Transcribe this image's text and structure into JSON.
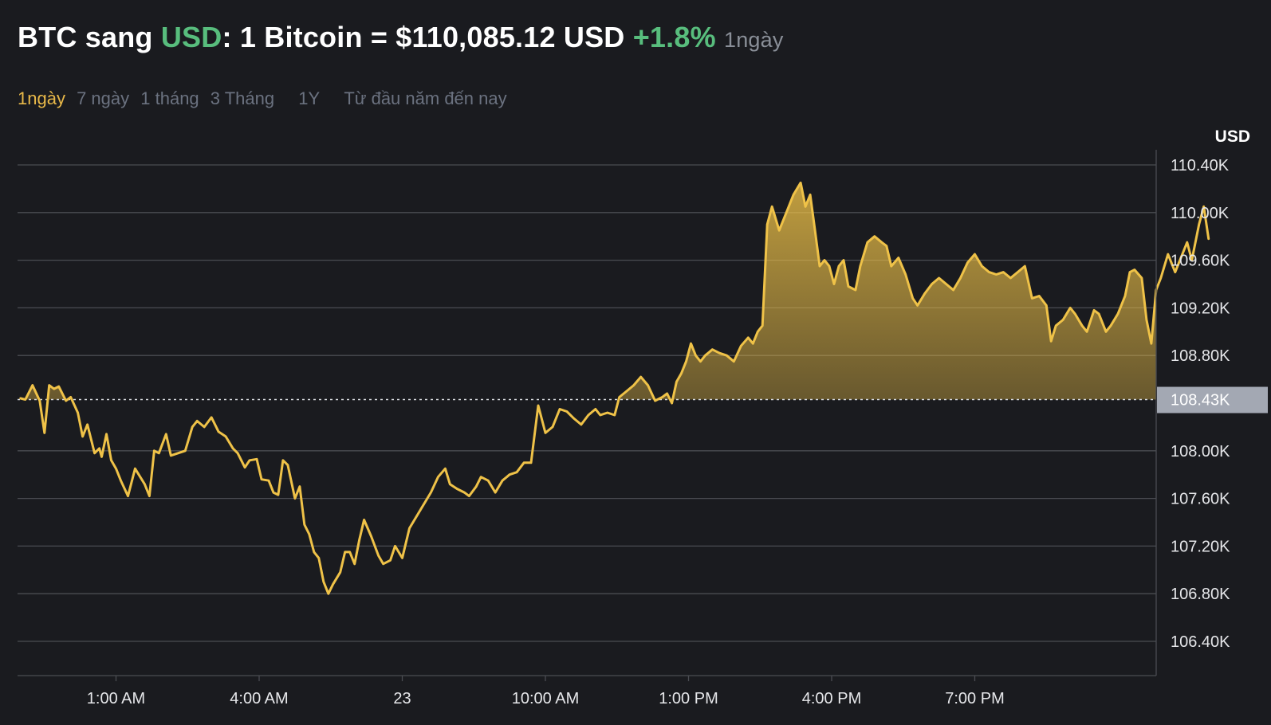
{
  "header": {
    "title_prefix": "BTC sang ",
    "title_accent": "USD",
    "title_main": ": 1 Bitcoin = $110,085.12 USD ",
    "change": "+1.8%",
    "period": "1ngày"
  },
  "tabs": {
    "items": [
      {
        "label": "1ngày",
        "active": true
      },
      {
        "label": "7 ngày",
        "active": false
      },
      {
        "label": "1 tháng",
        "active": false
      },
      {
        "label": "3 Tháng",
        "active": false
      },
      {
        "label": "1Y",
        "active": false
      },
      {
        "label": "Từ đầu năm đến nay",
        "active": false
      }
    ]
  },
  "colors": {
    "background": "#1a1b1f",
    "line": "#efc248",
    "positive": "#58bd7d",
    "muted": "#6b7280",
    "grid": "#4a4c52",
    "reference_badge": "#a3a8b3"
  },
  "chart_data": {
    "type": "area",
    "title": "",
    "xlabel": "",
    "ylabel": "USD",
    "ylim": [
      106.12,
      110.4
    ],
    "y_unit": "K",
    "yticks": [
      {
        "value": 110.4,
        "label": "110.40K"
      },
      {
        "value": 110.0,
        "label": "110.00K"
      },
      {
        "value": 109.6,
        "label": "109.60K"
      },
      {
        "value": 109.2,
        "label": "109.20K"
      },
      {
        "value": 108.8,
        "label": "108.80K"
      },
      {
        "value": 108.0,
        "label": "108.00K"
      },
      {
        "value": 107.6,
        "label": "107.60K"
      },
      {
        "value": 107.2,
        "label": "107.20K"
      },
      {
        "value": 106.8,
        "label": "106.80K"
      },
      {
        "value": 106.4,
        "label": "106.40K"
      }
    ],
    "xlim": [
      -1,
      22.8
    ],
    "xticks": [
      {
        "value": 1,
        "label": "1:00 AM"
      },
      {
        "value": 4,
        "label": "4:00 AM"
      },
      {
        "value": 7,
        "label": "23"
      },
      {
        "value": 10,
        "label": "10:00 AM"
      },
      {
        "value": 13,
        "label": "1:00 PM"
      },
      {
        "value": 16,
        "label": "4:00 PM"
      },
      {
        "value": 19,
        "label": "7:00 PM"
      }
    ],
    "reference": {
      "value": 108.43,
      "label": "108.43K"
    },
    "series": [
      {
        "points": [
          [
            -1.0,
            108.44
          ],
          [
            -0.9,
            108.43
          ],
          [
            -0.75,
            108.55
          ],
          [
            -0.6,
            108.42
          ],
          [
            -0.5,
            108.15
          ],
          [
            -0.4,
            108.55
          ],
          [
            -0.3,
            108.52
          ],
          [
            -0.2,
            108.54
          ],
          [
            -0.05,
            108.42
          ],
          [
            0.05,
            108.45
          ],
          [
            0.2,
            108.32
          ],
          [
            0.3,
            108.12
          ],
          [
            0.4,
            108.22
          ],
          [
            0.55,
            107.98
          ],
          [
            0.65,
            108.02
          ],
          [
            0.7,
            107.95
          ],
          [
            0.8,
            108.14
          ],
          [
            0.9,
            107.92
          ],
          [
            1.0,
            107.85
          ],
          [
            1.1,
            107.75
          ],
          [
            1.25,
            107.62
          ],
          [
            1.4,
            107.85
          ],
          [
            1.6,
            107.72
          ],
          [
            1.7,
            107.62
          ],
          [
            1.8,
            108.0
          ],
          [
            1.9,
            107.98
          ],
          [
            2.05,
            108.14
          ],
          [
            2.15,
            107.96
          ],
          [
            2.3,
            107.98
          ],
          [
            2.45,
            108.0
          ],
          [
            2.6,
            108.2
          ],
          [
            2.7,
            108.25
          ],
          [
            2.85,
            108.2
          ],
          [
            3.0,
            108.28
          ],
          [
            3.15,
            108.16
          ],
          [
            3.3,
            108.12
          ],
          [
            3.45,
            108.02
          ],
          [
            3.55,
            107.98
          ],
          [
            3.7,
            107.86
          ],
          [
            3.8,
            107.92
          ],
          [
            3.95,
            107.93
          ],
          [
            4.05,
            107.76
          ],
          [
            4.2,
            107.75
          ],
          [
            4.3,
            107.65
          ],
          [
            4.4,
            107.63
          ],
          [
            4.5,
            107.92
          ],
          [
            4.6,
            107.88
          ],
          [
            4.75,
            107.6
          ],
          [
            4.85,
            107.7
          ],
          [
            4.95,
            107.38
          ],
          [
            5.05,
            107.3
          ],
          [
            5.15,
            107.15
          ],
          [
            5.25,
            107.1
          ],
          [
            5.35,
            106.9
          ],
          [
            5.45,
            106.8
          ],
          [
            5.55,
            106.88
          ],
          [
            5.7,
            106.98
          ],
          [
            5.8,
            107.15
          ],
          [
            5.9,
            107.15
          ],
          [
            6.0,
            107.05
          ],
          [
            6.1,
            107.25
          ],
          [
            6.2,
            107.42
          ],
          [
            6.35,
            107.28
          ],
          [
            6.5,
            107.12
          ],
          [
            6.6,
            107.05
          ],
          [
            6.75,
            107.08
          ],
          [
            6.85,
            107.2
          ],
          [
            7.0,
            107.1
          ],
          [
            7.15,
            107.35
          ],
          [
            7.3,
            107.45
          ],
          [
            7.45,
            107.55
          ],
          [
            7.6,
            107.65
          ],
          [
            7.75,
            107.78
          ],
          [
            7.9,
            107.85
          ],
          [
            8.0,
            107.72
          ],
          [
            8.15,
            107.68
          ],
          [
            8.3,
            107.65
          ],
          [
            8.4,
            107.62
          ],
          [
            8.55,
            107.7
          ],
          [
            8.65,
            107.78
          ],
          [
            8.8,
            107.75
          ],
          [
            8.95,
            107.65
          ],
          [
            9.1,
            107.75
          ],
          [
            9.25,
            107.8
          ],
          [
            9.4,
            107.82
          ],
          [
            9.55,
            107.9
          ],
          [
            9.7,
            107.9
          ],
          [
            9.85,
            108.38
          ],
          [
            10.0,
            108.15
          ],
          [
            10.15,
            108.2
          ],
          [
            10.3,
            108.35
          ],
          [
            10.45,
            108.33
          ],
          [
            10.6,
            108.27
          ],
          [
            10.75,
            108.22
          ],
          [
            10.9,
            108.3
          ],
          [
            11.05,
            108.35
          ],
          [
            11.15,
            108.3
          ],
          [
            11.3,
            108.32
          ],
          [
            11.45,
            108.3
          ],
          [
            11.55,
            108.45
          ],
          [
            11.7,
            108.5
          ],
          [
            11.85,
            108.55
          ],
          [
            12.0,
            108.62
          ],
          [
            12.15,
            108.55
          ],
          [
            12.3,
            108.42
          ],
          [
            12.45,
            108.45
          ],
          [
            12.55,
            108.48
          ],
          [
            12.65,
            108.4
          ],
          [
            12.75,
            108.58
          ],
          [
            12.85,
            108.65
          ],
          [
            12.95,
            108.75
          ],
          [
            13.05,
            108.9
          ],
          [
            13.15,
            108.8
          ],
          [
            13.25,
            108.75
          ],
          [
            13.35,
            108.8
          ],
          [
            13.5,
            108.85
          ],
          [
            13.65,
            108.82
          ],
          [
            13.8,
            108.8
          ],
          [
            13.95,
            108.75
          ],
          [
            14.1,
            108.88
          ],
          [
            14.25,
            108.95
          ],
          [
            14.35,
            108.9
          ],
          [
            14.45,
            109.0
          ],
          [
            14.55,
            109.05
          ],
          [
            14.65,
            109.9
          ],
          [
            14.75,
            110.05
          ],
          [
            14.9,
            109.85
          ],
          [
            15.05,
            110.0
          ],
          [
            15.2,
            110.15
          ],
          [
            15.35,
            110.25
          ],
          [
            15.45,
            110.05
          ],
          [
            15.55,
            110.15
          ],
          [
            15.65,
            109.85
          ],
          [
            15.75,
            109.55
          ],
          [
            15.85,
            109.6
          ],
          [
            15.95,
            109.55
          ],
          [
            16.05,
            109.4
          ],
          [
            16.15,
            109.55
          ],
          [
            16.25,
            109.6
          ],
          [
            16.35,
            109.38
          ],
          [
            16.5,
            109.35
          ],
          [
            16.6,
            109.55
          ],
          [
            16.75,
            109.75
          ],
          [
            16.9,
            109.8
          ],
          [
            17.05,
            109.75
          ],
          [
            17.15,
            109.72
          ],
          [
            17.25,
            109.55
          ],
          [
            17.4,
            109.62
          ],
          [
            17.55,
            109.48
          ],
          [
            17.7,
            109.28
          ],
          [
            17.8,
            109.22
          ],
          [
            17.95,
            109.32
          ],
          [
            18.1,
            109.4
          ],
          [
            18.25,
            109.45
          ],
          [
            18.4,
            109.4
          ],
          [
            18.55,
            109.35
          ],
          [
            18.7,
            109.45
          ],
          [
            18.85,
            109.58
          ],
          [
            19.0,
            109.65
          ],
          [
            19.15,
            109.55
          ],
          [
            19.3,
            109.5
          ],
          [
            19.45,
            109.48
          ],
          [
            19.6,
            109.5
          ],
          [
            19.75,
            109.45
          ],
          [
            19.9,
            109.5
          ],
          [
            20.05,
            109.55
          ],
          [
            20.2,
            109.28
          ],
          [
            20.35,
            109.3
          ],
          [
            20.5,
            109.22
          ],
          [
            20.6,
            108.92
          ],
          [
            20.7,
            109.05
          ],
          [
            20.85,
            109.1
          ],
          [
            21.0,
            109.2
          ],
          [
            21.1,
            109.15
          ],
          [
            21.25,
            109.05
          ],
          [
            21.35,
            109.0
          ],
          [
            21.5,
            109.18
          ],
          [
            21.6,
            109.15
          ],
          [
            21.75,
            109.0
          ],
          [
            21.85,
            109.05
          ],
          [
            22.0,
            109.15
          ],
          [
            22.15,
            109.3
          ],
          [
            22.25,
            109.5
          ],
          [
            22.35,
            109.52
          ],
          [
            22.5,
            109.45
          ],
          [
            22.6,
            109.1
          ],
          [
            22.7,
            108.9
          ],
          [
            22.8,
            109.35
          ],
          [
            22.9,
            109.45
          ],
          [
            23.05,
            109.65
          ],
          [
            23.2,
            109.5
          ],
          [
            23.3,
            109.6
          ],
          [
            23.45,
            109.75
          ],
          [
            23.55,
            109.6
          ],
          [
            23.7,
            109.9
          ],
          [
            23.8,
            110.05
          ],
          [
            23.9,
            109.78
          ]
        ]
      }
    ],
    "grid": true,
    "legend": "none"
  }
}
